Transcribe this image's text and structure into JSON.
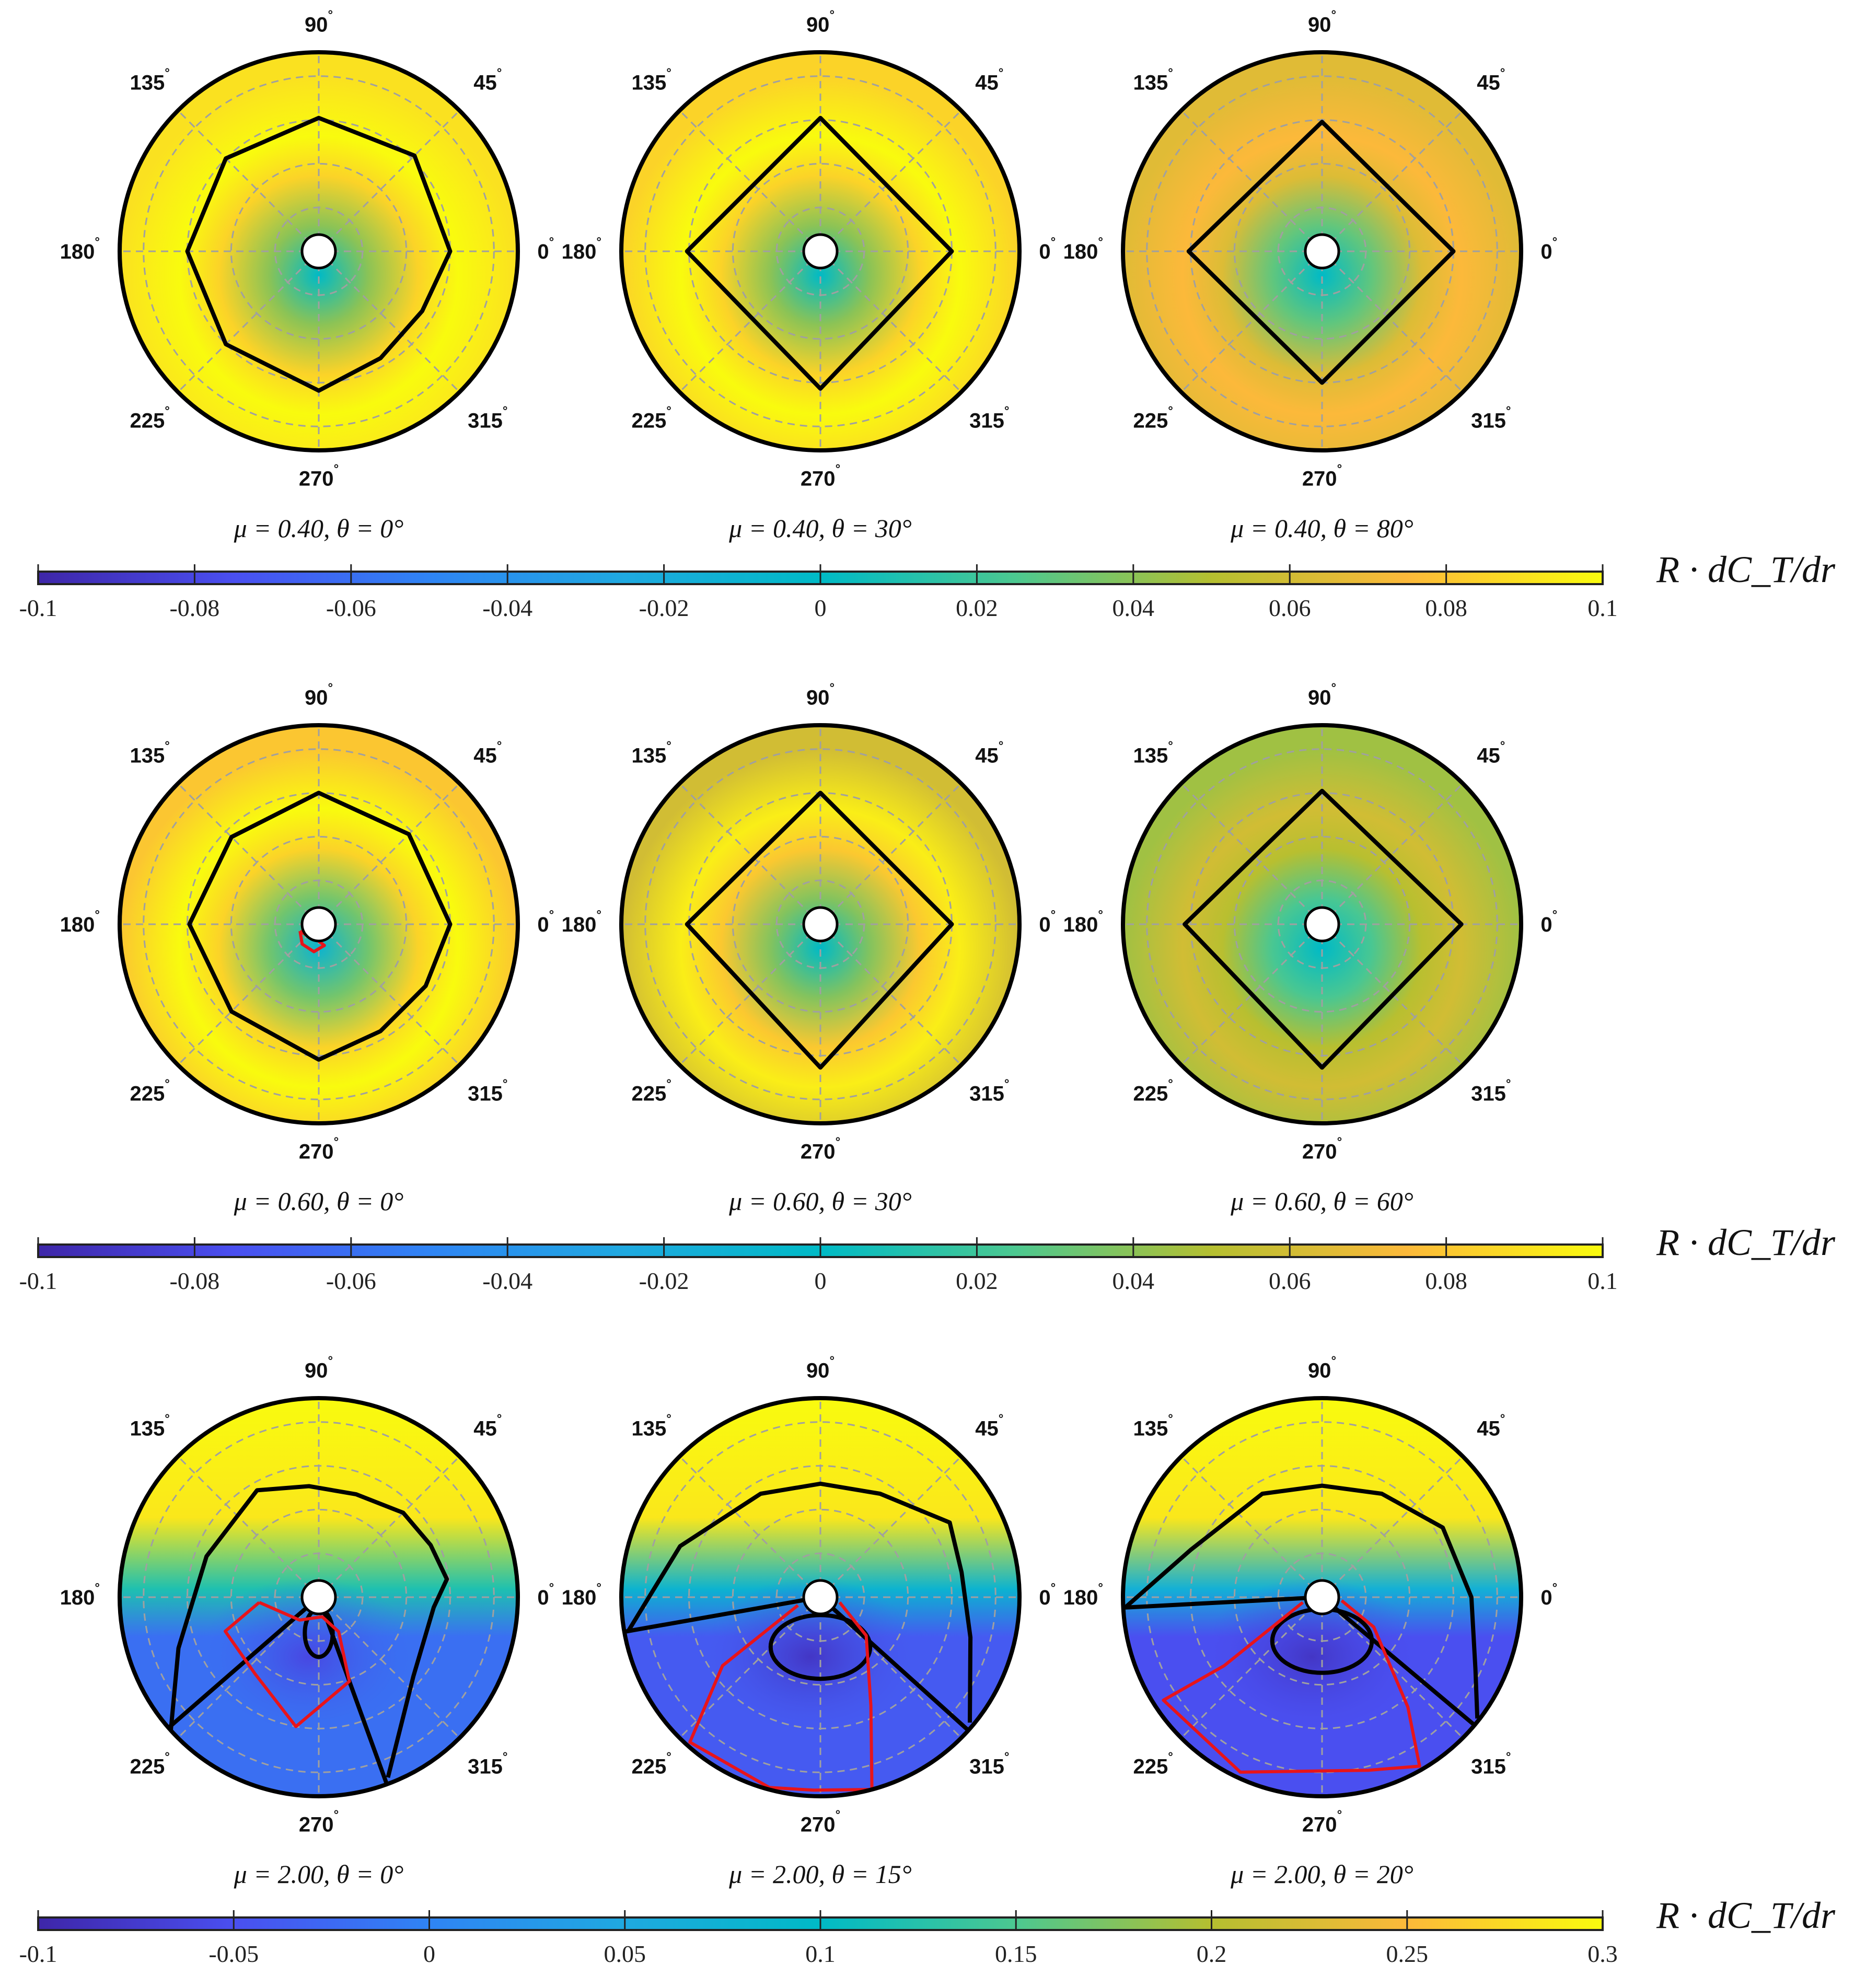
{
  "chart_data": {
    "type": "heatmap",
    "subtype": "polar",
    "angle_ticks": [
      "0°",
      "45°",
      "90°",
      "135°",
      "180°",
      "225°",
      "270°",
      "315°"
    ],
    "colormap": [
      "#3e26a8",
      "#4a4ff0",
      "#2f84f4",
      "#1fa9e0",
      "#00bac6",
      "#4cc890",
      "#b5bf30",
      "#fcb93a",
      "#f9fb0e"
    ],
    "rows": [
      {
        "colorbar": {
          "label": "R · dC_T/dr",
          "range": [
            -0.1,
            0.1
          ],
          "ticks": [
            "-0.1",
            "-0.08",
            "-0.06",
            "-0.04",
            "-0.02",
            "0",
            "0.02",
            "0.04",
            "0.06",
            "0.08",
            "0.1"
          ]
        },
        "panels": [
          {
            "title": "μ = 0.40, θ = 0°",
            "mode": "radial",
            "inner_value": 0.0,
            "outer_value": 0.1,
            "rim_value": 0.09,
            "black_contour": [
              [
                0,
                0.66
              ],
              [
                45,
                0.68
              ],
              [
                90,
                0.67
              ],
              [
                135,
                0.66
              ],
              [
                180,
                0.66
              ],
              [
                225,
                0.66
              ],
              [
                270,
                0.7
              ],
              [
                300,
                0.62
              ],
              [
                330,
                0.6
              ],
              [
                360,
                0.66
              ]
            ],
            "red_contour": []
          },
          {
            "title": "μ = 0.40, θ = 30°",
            "mode": "radial",
            "inner_value": 0.0,
            "outer_value": 0.1,
            "rim_value": 0.085,
            "black_contour": [
              [
                0,
                0.66
              ],
              [
                90,
                0.67
              ],
              [
                180,
                0.67
              ],
              [
                270,
                0.69
              ],
              [
                360,
                0.66
              ]
            ],
            "red_contour": []
          },
          {
            "title": "μ = 0.40, θ = 80°",
            "mode": "radial",
            "inner_value": 0.0,
            "outer_value": 0.075,
            "rim_value": 0.065,
            "black_contour": [
              [
                0,
                0.66
              ],
              [
                90,
                0.65
              ],
              [
                180,
                0.67
              ],
              [
                270,
                0.66
              ],
              [
                360,
                0.66
              ]
            ],
            "red_contour": []
          }
        ]
      },
      {
        "colorbar": {
          "label": "R · dC_T/dr",
          "range": [
            -0.1,
            0.1
          ],
          "ticks": [
            "-0.1",
            "-0.08",
            "-0.06",
            "-0.04",
            "-0.02",
            "0",
            "0.02",
            "0.04",
            "0.06",
            "0.08",
            "0.1"
          ]
        },
        "panels": [
          {
            "title": "μ = 0.60, θ = 0°",
            "mode": "radial",
            "inner_value": -0.01,
            "outer_value": 0.1,
            "rim_value": 0.08,
            "black_contour": [
              [
                0,
                0.66
              ],
              [
                45,
                0.64
              ],
              [
                90,
                0.66
              ],
              [
                135,
                0.62
              ],
              [
                180,
                0.65
              ],
              [
                225,
                0.62
              ],
              [
                270,
                0.68
              ],
              [
                300,
                0.62
              ],
              [
                330,
                0.62
              ],
              [
                360,
                0.66
              ]
            ],
            "red_contour": [
              [
                200,
                0.1
              ],
              [
                230,
                0.13
              ],
              [
                260,
                0.14
              ],
              [
                285,
                0.11
              ],
              [
                265,
                0.08
              ],
              [
                230,
                0.08
              ],
              [
                200,
                0.1
              ]
            ]
          },
          {
            "title": "μ = 0.60, θ = 30°",
            "mode": "radial",
            "inner_value": 0.0,
            "outer_value": 0.095,
            "rim_value": 0.06,
            "black_contour": [
              [
                0,
                0.66
              ],
              [
                90,
                0.66
              ],
              [
                180,
                0.67
              ],
              [
                270,
                0.72
              ],
              [
                360,
                0.66
              ]
            ],
            "red_contour": []
          },
          {
            "title": "μ = 0.60, θ = 60°",
            "mode": "radial",
            "inner_value": 0.0,
            "outer_value": 0.06,
            "rim_value": 0.045,
            "black_contour": [
              [
                0,
                0.7
              ],
              [
                90,
                0.67
              ],
              [
                180,
                0.69
              ],
              [
                270,
                0.72
              ],
              [
                360,
                0.7
              ]
            ],
            "red_contour": []
          }
        ]
      },
      {
        "colorbar": {
          "label": "R · dC_T/dr",
          "range": [
            -0.1,
            0.3
          ],
          "ticks": [
            "-0.1",
            "-0.05",
            "0",
            "0.05",
            "0.1",
            "0.15",
            "0.2",
            "0.25",
            "0.3"
          ]
        },
        "panels": [
          {
            "title": "μ = 2.00, θ = 0°",
            "mode": "vertical",
            "top_value": 0.3,
            "mid_value": 0.12,
            "bottom_value": -0.02,
            "blob_value": -0.06,
            "black_contour": [
              [
                222,
                1.0
              ],
              [
                200,
                0.75
              ],
              [
                160,
                0.6
              ],
              [
                120,
                0.62
              ],
              [
                95,
                0.56
              ],
              [
                70,
                0.55
              ],
              [
                45,
                0.6
              ],
              [
                25,
                0.62
              ],
              [
                8,
                0.65
              ],
              [
                355,
                0.58
              ],
              [
                320,
                0.62
              ],
              [
                291,
                0.97
              ]
            ],
            "wedge": [
              221,
              290
            ],
            "loop_center": [
              270,
              0.18
            ],
            "red_contour": [
              [
                185,
                0.3
              ],
              [
                200,
                0.5
              ],
              [
                230,
                0.5
              ],
              [
                260,
                0.66
              ],
              [
                290,
                0.45
              ],
              [
                300,
                0.2
              ],
              [
                280,
                0.1
              ],
              [
                230,
                0.15
              ],
              [
                185,
                0.3
              ]
            ]
          },
          {
            "title": "μ = 2.00, θ = 15°",
            "mode": "vertical",
            "top_value": 0.3,
            "mid_value": 0.08,
            "bottom_value": -0.04,
            "blob_value": -0.08,
            "black_contour": [
              [
                190,
                0.98
              ],
              [
                160,
                0.75
              ],
              [
                120,
                0.6
              ],
              [
                90,
                0.57
              ],
              [
                60,
                0.6
              ],
              [
                30,
                0.75
              ],
              [
                10,
                0.72
              ],
              [
                345,
                0.78
              ],
              [
                320,
                0.98
              ]
            ],
            "wedge": [
              190,
              318
            ],
            "loop_center": [
              270,
              0.25
            ],
            "red_contour": [
              [
                200,
                0.12
              ],
              [
                215,
                0.6
              ],
              [
                228,
                0.98
              ],
              [
                255,
                0.99
              ],
              [
                268,
                0.97
              ],
              [
                285,
                1.0
              ],
              [
                295,
                0.6
              ],
              [
                320,
                0.3
              ],
              [
                345,
                0.1
              ]
            ]
          },
          {
            "title": "μ = 2.00, θ = 20°",
            "mode": "vertical",
            "top_value": 0.3,
            "mid_value": 0.07,
            "bottom_value": -0.05,
            "blob_value": -0.08,
            "black_contour": [
              [
                183,
                0.99
              ],
              [
                160,
                0.7
              ],
              [
                120,
                0.6
              ],
              [
                90,
                0.56
              ],
              [
                60,
                0.6
              ],
              [
                30,
                0.7
              ],
              [
                0,
                0.75
              ],
              [
                335,
                0.85
              ],
              [
                322,
                0.99
              ]
            ],
            "wedge": [
              183,
              320
            ],
            "loop_center": [
              270,
              0.22
            ],
            "red_contour": [
              [
                195,
                0.1
              ],
              [
                215,
                0.6
              ],
              [
                213,
                0.95
              ],
              [
                245,
                0.97
              ],
              [
                285,
                0.9
              ],
              [
                300,
                0.98
              ],
              [
                308,
                0.7
              ],
              [
                330,
                0.3
              ],
              [
                350,
                0.1
              ]
            ]
          }
        ]
      }
    ]
  }
}
